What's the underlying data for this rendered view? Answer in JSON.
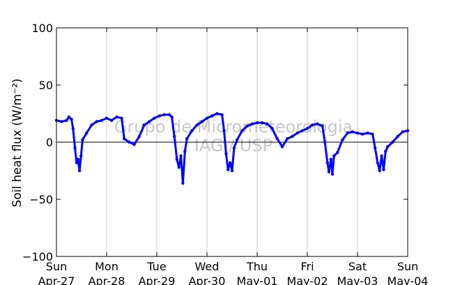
{
  "chart_data": {
    "type": "line",
    "ylabel": "Soil heat flux (W/m⁻²)",
    "ylim": [
      -100,
      100
    ],
    "yticks": [
      -100,
      -50,
      0,
      50,
      100
    ],
    "ytick_labels": [
      "−100",
      "−50",
      "0",
      "50",
      "100"
    ],
    "xlim": [
      0,
      7
    ],
    "xticks": [
      0,
      1,
      2,
      3,
      4,
      5,
      6,
      7
    ],
    "xtick_labels": [
      {
        "day": "Sun",
        "date": "Apr-27"
      },
      {
        "day": "Mon",
        "date": "Apr-28"
      },
      {
        "day": "Tue",
        "date": "Apr-29"
      },
      {
        "day": "Wed",
        "date": "Apr-30"
      },
      {
        "day": "Thu",
        "date": "May-01"
      },
      {
        "day": "Fri",
        "date": "May-02"
      },
      {
        "day": "Sat",
        "date": "May-03"
      },
      {
        "day": "Sun",
        "date": "May-04"
      }
    ],
    "grid": "x",
    "zero_line": true,
    "watermark": [
      "Grupo de Micrometeorologia",
      "IAG / USP"
    ],
    "series": [
      {
        "color": "#0000ff",
        "points": [
          [
            0.0,
            19
          ],
          [
            0.1,
            18
          ],
          [
            0.2,
            19
          ],
          [
            0.25,
            22
          ],
          [
            0.3,
            20
          ],
          [
            0.33,
            12
          ],
          [
            0.37,
            -5
          ],
          [
            0.4,
            -18
          ],
          [
            0.43,
            -15
          ],
          [
            0.46,
            -25
          ],
          [
            0.49,
            -12
          ],
          [
            0.52,
            2
          ],
          [
            0.6,
            8
          ],
          [
            0.7,
            15
          ],
          [
            0.8,
            18
          ],
          [
            0.9,
            19
          ],
          [
            1.0,
            21
          ],
          [
            1.1,
            19
          ],
          [
            1.2,
            22
          ],
          [
            1.3,
            21
          ],
          [
            1.35,
            3
          ],
          [
            1.45,
            0
          ],
          [
            1.55,
            -2
          ],
          [
            1.65,
            5
          ],
          [
            1.75,
            15
          ],
          [
            1.85,
            18
          ],
          [
            1.95,
            21
          ],
          [
            2.05,
            23
          ],
          [
            2.15,
            24
          ],
          [
            2.25,
            24
          ],
          [
            2.3,
            22
          ],
          [
            2.35,
            5
          ],
          [
            2.4,
            -15
          ],
          [
            2.44,
            -22
          ],
          [
            2.48,
            -12
          ],
          [
            2.52,
            -36
          ],
          [
            2.56,
            -8
          ],
          [
            2.6,
            3
          ],
          [
            2.7,
            10
          ],
          [
            2.8,
            15
          ],
          [
            2.9,
            18
          ],
          [
            3.0,
            21
          ],
          [
            3.1,
            23
          ],
          [
            3.2,
            25
          ],
          [
            3.3,
            24
          ],
          [
            3.34,
            10
          ],
          [
            3.38,
            -10
          ],
          [
            3.42,
            -24
          ],
          [
            3.46,
            -18
          ],
          [
            3.5,
            -25
          ],
          [
            3.54,
            -5
          ],
          [
            3.6,
            2
          ],
          [
            3.7,
            10
          ],
          [
            3.8,
            14
          ],
          [
            3.9,
            16
          ],
          [
            4.0,
            17
          ],
          [
            4.1,
            17
          ],
          [
            4.2,
            16
          ],
          [
            4.3,
            12
          ],
          [
            4.4,
            3
          ],
          [
            4.5,
            -4
          ],
          [
            4.6,
            3
          ],
          [
            4.7,
            5
          ],
          [
            4.8,
            8
          ],
          [
            4.9,
            10
          ],
          [
            5.0,
            12
          ],
          [
            5.1,
            15
          ],
          [
            5.2,
            16
          ],
          [
            5.3,
            14
          ],
          [
            5.35,
            0
          ],
          [
            5.4,
            -18
          ],
          [
            5.43,
            -26
          ],
          [
            5.47,
            -15
          ],
          [
            5.5,
            -28
          ],
          [
            5.53,
            -12
          ],
          [
            5.6,
            -9
          ],
          [
            5.7,
            2
          ],
          [
            5.8,
            8
          ],
          [
            5.9,
            9
          ],
          [
            6.0,
            8
          ],
          [
            6.1,
            7
          ],
          [
            6.2,
            8
          ],
          [
            6.3,
            7
          ],
          [
            6.35,
            -5
          ],
          [
            6.4,
            -18
          ],
          [
            6.44,
            -25
          ],
          [
            6.48,
            -12
          ],
          [
            6.52,
            -24
          ],
          [
            6.56,
            -8
          ],
          [
            6.6,
            -4
          ],
          [
            6.7,
            0
          ],
          [
            6.8,
            5
          ],
          [
            6.9,
            9
          ],
          [
            7.0,
            10
          ]
        ]
      }
    ]
  }
}
